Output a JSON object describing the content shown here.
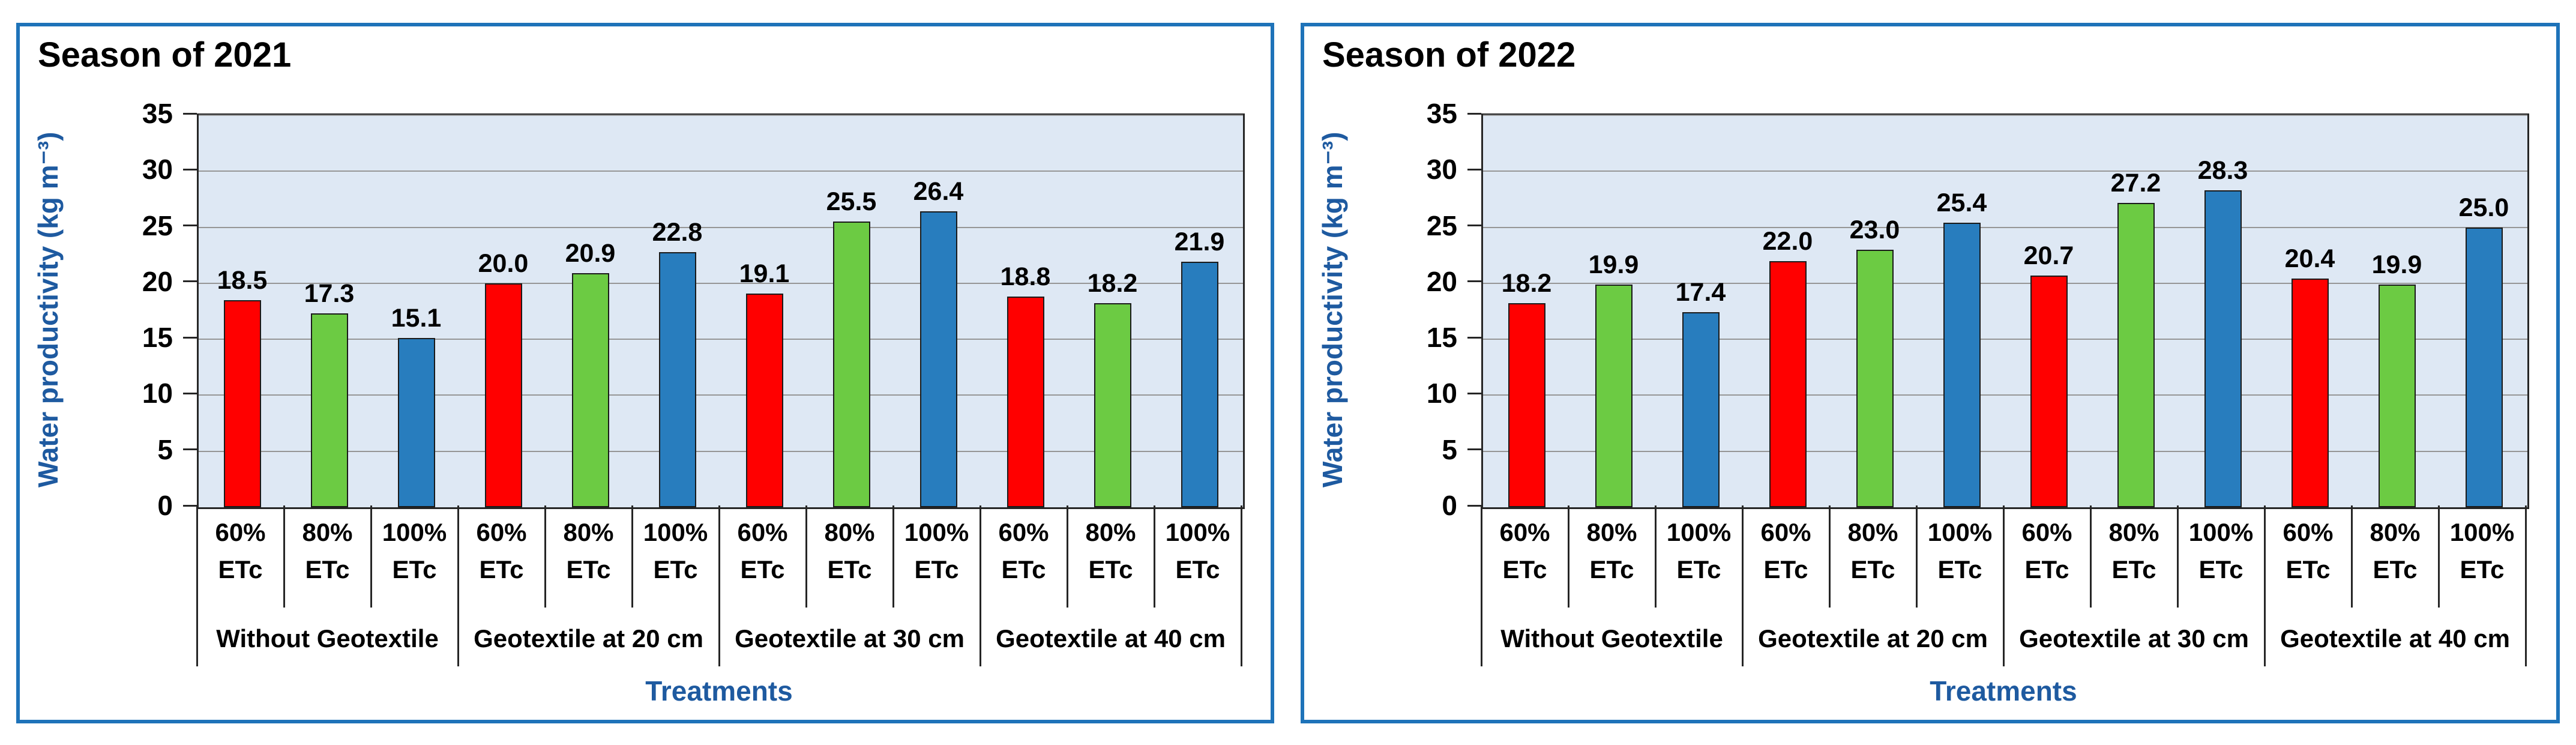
{
  "page": {
    "background": "#FFFFFF"
  },
  "styles": {
    "panel_border": "#1E73B9",
    "plot_background": "#DEE8F4",
    "gridline": "#969696",
    "axis_line": "#262626",
    "bar_outline": "#1A1A1A",
    "title_color": "#000000",
    "axis_title_color": "#1E5AA0",
    "tick_label_color": "#000000"
  },
  "chart_data": [
    {
      "type": "bar",
      "title": "Season of 2021",
      "ylabel": "Water productivity (kg m⁻³)",
      "xlabel": "Treatments",
      "ylim": [
        0,
        35
      ],
      "yticks": [
        0,
        5,
        10,
        15,
        20,
        25,
        30,
        35
      ],
      "grid": true,
      "legend_position": "none",
      "groups": [
        "Without Geotextile",
        "Geotextile at 20 cm",
        "Geotextile at 30 cm",
        "Geotextile at 40 cm"
      ],
      "bar_tick_labels": [
        "60% ETc",
        "80% ETc",
        "100% ETc"
      ],
      "series": [
        {
          "name": "60% ETc",
          "color": "#FF0000",
          "values": [
            18.5,
            20.0,
            19.1,
            18.8
          ]
        },
        {
          "name": "80% ETc",
          "color": "#6CCB43",
          "values": [
            17.3,
            20.9,
            25.5,
            18.2
          ]
        },
        {
          "name": "100% ETc",
          "color": "#287DBE",
          "values": [
            15.1,
            22.8,
            26.4,
            21.9
          ]
        }
      ],
      "value_labels": [
        "18.5",
        "17.3",
        "15.1",
        "20.0",
        "20.9",
        "22.8",
        "19.1",
        "25.5",
        "26.4",
        "18.8",
        "18.2",
        "21.9"
      ]
    },
    {
      "type": "bar",
      "title": "Season of 2022",
      "ylabel": "Water productivity (kg m⁻³)",
      "xlabel": "Treatments",
      "ylim": [
        0,
        35
      ],
      "yticks": [
        0,
        5,
        10,
        15,
        20,
        25,
        30,
        35
      ],
      "grid": true,
      "legend_position": "none",
      "groups": [
        "Without Geotextile",
        "Geotextile at 20 cm",
        "Geotextile at 30 cm",
        "Geotextile at 40 cm"
      ],
      "bar_tick_labels": [
        "60% ETc",
        "80% ETc",
        "100% ETc"
      ],
      "series": [
        {
          "name": "60% ETc",
          "color": "#FF0000",
          "values": [
            18.2,
            22.0,
            20.7,
            20.4
          ]
        },
        {
          "name": "80% ETc",
          "color": "#6CCB43",
          "values": [
            19.9,
            23.0,
            27.2,
            19.9
          ]
        },
        {
          "name": "100% ETc",
          "color": "#287DBE",
          "values": [
            17.4,
            25.4,
            28.3,
            25.0
          ]
        }
      ],
      "value_labels": [
        "18.2",
        "19.9",
        "17.4",
        "22.0",
        "23.0",
        "25.4",
        "20.7",
        "27.2",
        "28.3",
        "20.4",
        "19.9",
        "25.0"
      ]
    }
  ]
}
